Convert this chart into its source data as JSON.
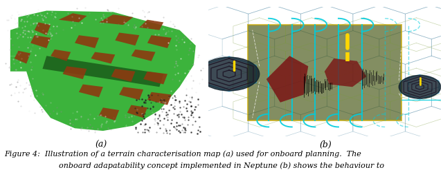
{
  "figsize": [
    6.4,
    2.47
  ],
  "dpi": 100,
  "subfig_labels": [
    "(a)",
    "(b)"
  ],
  "caption_line1": "Figure 4:  Illustration of a terrain characterisation map (a) used for onboard planning.  The",
  "caption_line2": "onboard adapatability concept implemented in Neptune (b) shows the behaviour to",
  "label_fontsize": 9,
  "caption_fontsize": 8.0,
  "bg_color": "#ffffff",
  "left_image_bg": "#000000",
  "right_image_bg": "#1e3d50"
}
